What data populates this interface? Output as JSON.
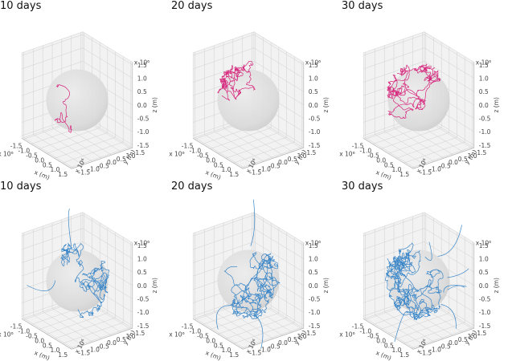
{
  "chart_data": [
    {
      "id": "p1",
      "type": "line3d",
      "title": "10 days",
      "color": "#d6267c",
      "row": 0,
      "col": 0,
      "xlabel": "x (m)",
      "ylabel": "y (m)",
      "zlabel": "z (m)",
      "xunit": "x 10⁶",
      "yunit": "x 10⁶",
      "zunit": "x 10⁶",
      "xticks": [
        "-1.5",
        "-1.0",
        "-0.5",
        "0.0",
        "0.5",
        "1.0",
        "1.5"
      ],
      "yticks": [
        "-1.5",
        "-1.0",
        "-0.5",
        "0.0",
        "0.5",
        "1.0",
        "1.5"
      ],
      "zticks": [
        "-1.5",
        "-1.0",
        "-0.5",
        "0.0",
        "0.5",
        "1.0",
        "1.5"
      ],
      "axis_range": [
        -1.6,
        1.6
      ],
      "sphere_radius": 1.4,
      "steps": 70,
      "spread": 0.18,
      "start": [
        -0.25,
        0.0,
        -1.25
      ],
      "seed": 11,
      "escape": 0
    },
    {
      "id": "p2",
      "type": "line3d",
      "title": "20 days",
      "color": "#d6267c",
      "row": 0,
      "col": 1,
      "xlabel": "x (m)",
      "ylabel": "y (m)",
      "zlabel": "z (m)",
      "xunit": "x 10⁶",
      "yunit": "x 10⁶",
      "zunit": "x 10⁶",
      "xticks": [
        "-1.5",
        "-1.0",
        "-0.5",
        "0.0",
        "0.5",
        "1.0",
        "1.5"
      ],
      "yticks": [
        "-1.5",
        "-1.0",
        "-0.5",
        "0.0",
        "0.5",
        "1.0",
        "1.5"
      ],
      "zticks": [
        "-1.5",
        "-1.0",
        "-0.5",
        "0.0",
        "0.5",
        "1.0",
        "1.5"
      ],
      "axis_range": [
        -1.6,
        1.6
      ],
      "sphere_radius": 1.4,
      "steps": 420,
      "spread": 0.16,
      "start": [
        -1.0,
        -0.4,
        0.9
      ],
      "seed": 22,
      "escape": 0
    },
    {
      "id": "p3",
      "type": "line3d",
      "title": "30 days",
      "color": "#d6267c",
      "row": 0,
      "col": 2,
      "xlabel": "x (m)",
      "ylabel": "y (m)",
      "zlabel": "z (m)",
      "xunit": "x 10⁶",
      "yunit": "x 10⁶",
      "zunit": "x 10⁶",
      "xticks": [
        "-1.5",
        "-1.0",
        "-0.5",
        "0.0",
        "0.5",
        "1.0",
        "1.5"
      ],
      "yticks": [
        "-1.5",
        "-1.0",
        "-0.5",
        "0.0",
        "0.5",
        "1.0",
        "1.5"
      ],
      "zticks": [
        "-1.5",
        "-1.0",
        "-0.5",
        "0.0",
        "0.5",
        "1.0",
        "1.5"
      ],
      "axis_range": [
        -1.6,
        1.6
      ],
      "sphere_radius": 1.4,
      "steps": 700,
      "spread": 0.16,
      "start": [
        -1.0,
        -0.5,
        1.0
      ],
      "seed": 33,
      "escape": 0
    },
    {
      "id": "p4",
      "type": "line3d",
      "title": "10 days",
      "color": "#3a86c8",
      "row": 1,
      "col": 0,
      "xlabel": "x (m)",
      "ylabel": "y (m)",
      "zlabel": "z (m)",
      "xunit": "x 10⁶",
      "yunit": "x 10⁶",
      "zunit": "x 10⁶",
      "xticks": [
        "-1.5",
        "-1.0",
        "-0.5",
        "0.0",
        "0.5",
        "1.0",
        "1.5"
      ],
      "yticks": [
        "-1.5",
        "-1.0",
        "-0.5",
        "0.0",
        "0.5",
        "1.0",
        "1.5"
      ],
      "zticks": [
        "-1.5",
        "-1.0",
        "-0.5",
        "0.0",
        "0.5",
        "1.0",
        "1.5"
      ],
      "axis_range": [
        -1.6,
        1.6
      ],
      "sphere_radius": 1.4,
      "steps": 520,
      "spread": 0.2,
      "start": [
        -0.6,
        0.0,
        0.3
      ],
      "seed": 44,
      "escape": 2
    },
    {
      "id": "p5",
      "type": "line3d",
      "title": "20 days",
      "color": "#3a86c8",
      "row": 1,
      "col": 1,
      "xlabel": "x (m)",
      "ylabel": "y (m)",
      "zlabel": "z (m)",
      "xunit": "x 10⁶",
      "yunit": "x 10⁶",
      "zunit": "x 10⁶",
      "xticks": [
        "-1.5",
        "-1.0",
        "-0.5",
        "0.0",
        "0.5",
        "1.0",
        "1.5"
      ],
      "yticks": [
        "-1.5",
        "-1.0",
        "-0.5",
        "0.0",
        "0.5",
        "1.0",
        "1.5"
      ],
      "zticks": [
        "-1.5",
        "-1.0",
        "-0.5",
        "0.0",
        "0.5",
        "1.0",
        "1.5"
      ],
      "axis_range": [
        -1.6,
        1.6
      ],
      "sphere_radius": 1.4,
      "steps": 760,
      "spread": 0.2,
      "start": [
        -0.6,
        0.0,
        0.3
      ],
      "seed": 55,
      "escape": 4
    },
    {
      "id": "p6",
      "type": "line3d",
      "title": "30 days",
      "color": "#3a86c8",
      "row": 1,
      "col": 2,
      "xlabel": "x (m)",
      "ylabel": "y (m)",
      "zlabel": "z (m)",
      "xunit": "x 10⁶",
      "yunit": "x 10⁶",
      "zunit": "x 10⁶",
      "xticks": [
        "-1.5",
        "-1.0",
        "-0.5",
        "0.0",
        "0.5",
        "1.0",
        "1.5"
      ],
      "yticks": [
        "-1.5",
        "-1.0",
        "-0.5",
        "0.0",
        "0.5",
        "1.0",
        "1.5"
      ],
      "zticks": [
        "-1.5",
        "-1.0",
        "-0.5",
        "0.0",
        "0.5",
        "1.0",
        "1.5"
      ],
      "axis_range": [
        -1.6,
        1.6
      ],
      "sphere_radius": 1.4,
      "steps": 1100,
      "spread": 0.2,
      "start": [
        -0.6,
        0.0,
        0.3
      ],
      "seed": 66,
      "escape": 8
    }
  ]
}
